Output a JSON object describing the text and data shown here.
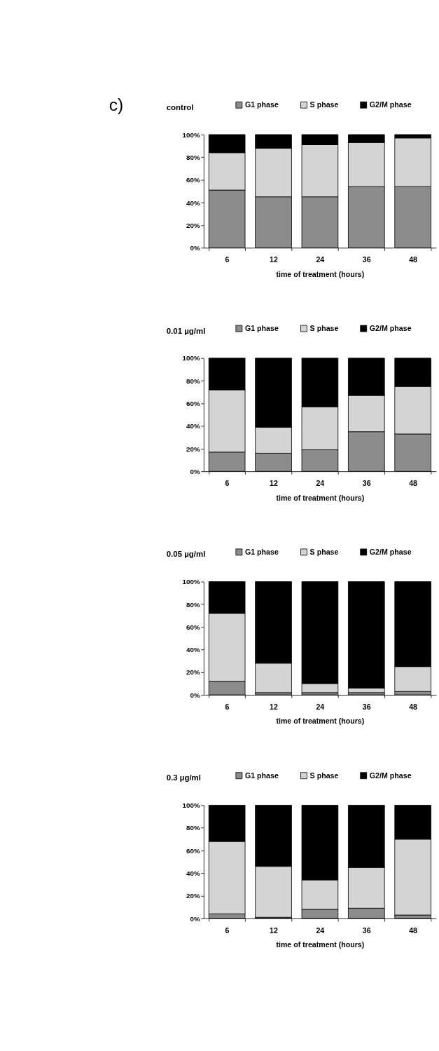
{
  "chart_data": [
    {
      "type": "bar",
      "title": "control",
      "stacked": true,
      "categories": [
        "6",
        "12",
        "24",
        "36",
        "48"
      ],
      "xlabel": "time of treatment (hours)",
      "legend": "top",
      "grid": false,
      "annotations": [
        "c)"
      ],
      "ylim": [
        0,
        100
      ],
      "yticks": [
        {
          "value": 0,
          "label": "0%"
        },
        {
          "value": 20,
          "label": "20%"
        },
        {
          "value": 40,
          "label": "40%"
        },
        {
          "value": 60,
          "label": "60%"
        },
        {
          "value": 80,
          "label": "80%"
        },
        {
          "value": 100,
          "label": "100%"
        }
      ],
      "series": [
        {
          "name": "G1 phase",
          "color": "#8c8c8c",
          "values": [
            51,
            45,
            45,
            54,
            54
          ]
        },
        {
          "name": "S phase",
          "color": "#d4d4d4",
          "values": [
            33,
            43,
            46,
            39,
            43
          ]
        },
        {
          "name": "G2/M phase",
          "color": "#000000",
          "values": [
            16,
            12,
            9,
            7,
            3
          ]
        }
      ]
    },
    {
      "type": "bar",
      "title": "0.01 µg/ml",
      "stacked": true,
      "categories": [
        "6",
        "12",
        "24",
        "36",
        "48"
      ],
      "xlabel": "time of treatment (hours)",
      "legend": "top",
      "grid": false,
      "ylim": [
        0,
        100
      ],
      "yticks": [
        {
          "value": 0,
          "label": "0%"
        },
        {
          "value": 20,
          "label": "20%"
        },
        {
          "value": 40,
          "label": "40%"
        },
        {
          "value": 60,
          "label": "60%"
        },
        {
          "value": 80,
          "label": "80%"
        },
        {
          "value": 100,
          "label": "100%"
        }
      ],
      "series": [
        {
          "name": "G1 phase",
          "color": "#8c8c8c",
          "values": [
            17,
            16,
            19,
            35,
            33
          ]
        },
        {
          "name": "S phase",
          "color": "#d4d4d4",
          "values": [
            55,
            23,
            38,
            32,
            42
          ]
        },
        {
          "name": "G2/M phase",
          "color": "#000000",
          "values": [
            28,
            61,
            43,
            33,
            25
          ]
        }
      ]
    },
    {
      "type": "bar",
      "title": "0.05 µg/ml",
      "stacked": true,
      "categories": [
        "6",
        "12",
        "24",
        "36",
        "48"
      ],
      "xlabel": "time of treatment (hours)",
      "legend": "top",
      "grid": false,
      "ylim": [
        0,
        100
      ],
      "yticks": [
        {
          "value": 0,
          "label": "0%"
        },
        {
          "value": 20,
          "label": "20%"
        },
        {
          "value": 40,
          "label": "40%"
        },
        {
          "value": 60,
          "label": "60%"
        },
        {
          "value": 80,
          "label": "80%"
        },
        {
          "value": 100,
          "label": "100%"
        }
      ],
      "series": [
        {
          "name": "G1 phase",
          "color": "#8c8c8c",
          "values": [
            12,
            2,
            2,
            2,
            3
          ]
        },
        {
          "name": "S phase",
          "color": "#d4d4d4",
          "values": [
            60,
            26,
            8,
            4,
            22
          ]
        },
        {
          "name": "G2/M phase",
          "color": "#000000",
          "values": [
            28,
            72,
            90,
            94,
            75
          ]
        }
      ]
    },
    {
      "type": "bar",
      "title": "0.3 µg/ml",
      "stacked": true,
      "categories": [
        "6",
        "12",
        "24",
        "36",
        "48"
      ],
      "xlabel": "time of treatment (hours)",
      "legend": "top",
      "grid": false,
      "ylim": [
        0,
        100
      ],
      "yticks": [
        {
          "value": 0,
          "label": "0%"
        },
        {
          "value": 20,
          "label": "20%"
        },
        {
          "value": 40,
          "label": "40%"
        },
        {
          "value": 60,
          "label": "60%"
        },
        {
          "value": 80,
          "label": "80%"
        },
        {
          "value": 100,
          "label": "100%"
        }
      ],
      "series": [
        {
          "name": "G1 phase",
          "color": "#8c8c8c",
          "values": [
            4,
            1,
            8,
            9,
            3
          ]
        },
        {
          "name": "S phase",
          "color": "#d4d4d4",
          "values": [
            64,
            45,
            26,
            36,
            67
          ]
        },
        {
          "name": "G2/M phase",
          "color": "#000000",
          "values": [
            32,
            54,
            66,
            55,
            30
          ]
        }
      ]
    }
  ]
}
